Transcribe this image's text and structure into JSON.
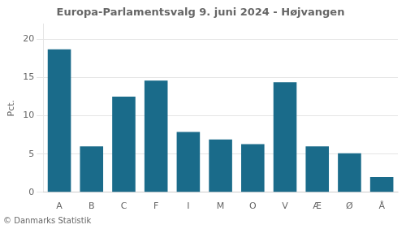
{
  "chart_data": {
    "type": "bar",
    "title": "Europa-Parlamentsvalg 9. juni 2024 - Højvangen",
    "categories": [
      "A",
      "B",
      "C",
      "F",
      "I",
      "M",
      "O",
      "V",
      "Æ",
      "Ø",
      "Å"
    ],
    "values": [
      18.7,
      6.0,
      12.5,
      14.6,
      7.9,
      6.9,
      6.3,
      14.4,
      6.0,
      5.1,
      2.0
    ],
    "color": "#1a6b8a",
    "ylabel": "Pct.",
    "ylim": [
      0,
      22
    ],
    "yticks": [
      0,
      5,
      10,
      15,
      20
    ],
    "grid": true,
    "annotations": [
      "© Danmarks Statistik"
    ]
  }
}
